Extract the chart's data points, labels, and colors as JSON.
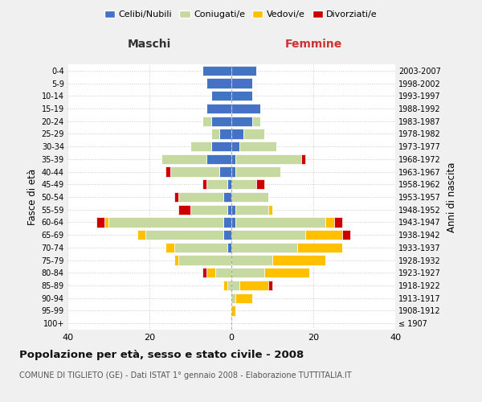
{
  "age_groups": [
    "100+",
    "95-99",
    "90-94",
    "85-89",
    "80-84",
    "75-79",
    "70-74",
    "65-69",
    "60-64",
    "55-59",
    "50-54",
    "45-49",
    "40-44",
    "35-39",
    "30-34",
    "25-29",
    "20-24",
    "15-19",
    "10-14",
    "5-9",
    "0-4"
  ],
  "birth_years": [
    "≤ 1907",
    "1908-1912",
    "1913-1917",
    "1918-1922",
    "1923-1927",
    "1928-1932",
    "1933-1937",
    "1938-1942",
    "1943-1947",
    "1948-1952",
    "1953-1957",
    "1958-1962",
    "1963-1967",
    "1968-1972",
    "1973-1977",
    "1978-1982",
    "1983-1987",
    "1988-1992",
    "1993-1997",
    "1998-2002",
    "2003-2007"
  ],
  "male": {
    "celibi": [
      0,
      0,
      0,
      0,
      0,
      0,
      1,
      2,
      2,
      1,
      2,
      1,
      3,
      6,
      5,
      3,
      5,
      6,
      5,
      6,
      7
    ],
    "coniugati": [
      0,
      0,
      0,
      1,
      4,
      13,
      13,
      19,
      28,
      9,
      11,
      5,
      12,
      11,
      5,
      2,
      2,
      0,
      0,
      0,
      0
    ],
    "vedovi": [
      0,
      0,
      0,
      1,
      2,
      1,
      2,
      2,
      1,
      0,
      0,
      0,
      0,
      0,
      0,
      0,
      0,
      0,
      0,
      0,
      0
    ],
    "divorziati": [
      0,
      0,
      0,
      0,
      1,
      0,
      0,
      0,
      2,
      3,
      1,
      1,
      1,
      0,
      0,
      0,
      0,
      0,
      0,
      0,
      0
    ]
  },
  "female": {
    "nubili": [
      0,
      0,
      0,
      0,
      0,
      0,
      0,
      0,
      1,
      1,
      0,
      0,
      1,
      1,
      2,
      3,
      5,
      7,
      5,
      5,
      6
    ],
    "coniugate": [
      0,
      0,
      1,
      2,
      8,
      10,
      16,
      18,
      22,
      8,
      9,
      6,
      11,
      16,
      9,
      5,
      2,
      0,
      0,
      0,
      0
    ],
    "vedove": [
      0,
      1,
      4,
      7,
      11,
      13,
      11,
      9,
      2,
      1,
      0,
      0,
      0,
      0,
      0,
      0,
      0,
      0,
      0,
      0,
      0
    ],
    "divorziate": [
      0,
      0,
      0,
      1,
      0,
      0,
      0,
      2,
      2,
      0,
      0,
      2,
      0,
      1,
      0,
      0,
      0,
      0,
      0,
      0,
      0
    ]
  },
  "colors": {
    "celibi_nubili": "#4472c4",
    "coniugati": "#c5d9a0",
    "vedovi": "#ffc000",
    "divorziati": "#cc0000"
  },
  "xlim": 40,
  "title": "Popolazione per età, sesso e stato civile - 2008",
  "subtitle": "COMUNE DI TIGLIETO (GE) - Dati ISTAT 1° gennaio 2008 - Elaborazione TUTTITALIA.IT",
  "ylabel_left": "Fasce di età",
  "ylabel_right": "Anni di nascita",
  "xlabel_left": "Maschi",
  "xlabel_right": "Femmine",
  "bg_color": "#f0f0f0",
  "plot_bg": "#ffffff",
  "legend_labels": [
    "Celibi/Nubili",
    "Coniugati/e",
    "Vedovi/e",
    "Divorziati/e"
  ]
}
